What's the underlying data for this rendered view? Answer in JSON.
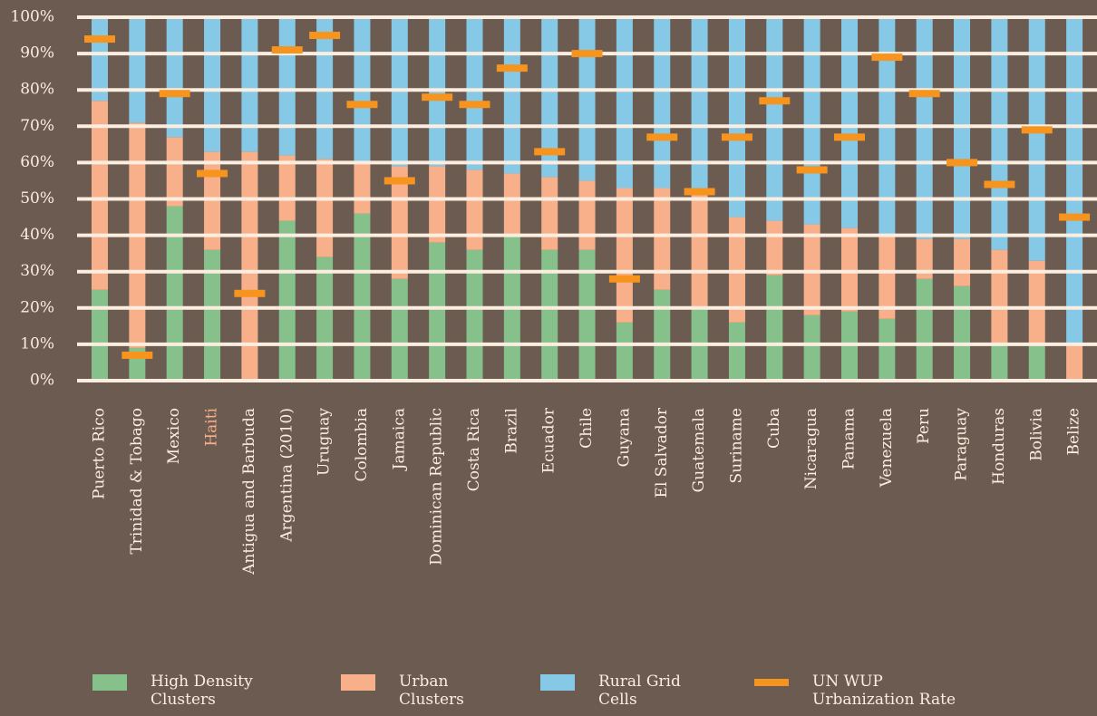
{
  "chart_data": {
    "type": "stacked_bar",
    "categories": [
      "Puerto Rico",
      "Trinidad & Tobago",
      "Mexico",
      "Haiti",
      "Antigua and Barbuda",
      "Argentina (2010)",
      "Uruguay",
      "Colombia",
      "Jamaica",
      "Dominican Republic",
      "Costa Rica",
      "Brazil",
      "Ecuador",
      "Chile",
      "Guyana",
      "El Salvador",
      "Guatemala",
      "Suriname",
      "Cuba",
      "Nicaragua",
      "Panama",
      "Venezuela",
      "Peru",
      "Paraguay",
      "Honduras",
      "Bolivia",
      "Belize"
    ],
    "highlighted_categories": [
      3
    ],
    "highlight_color": "#f7b08a",
    "series": [
      {
        "name": "High Density Clusters",
        "color": "#86c08a",
        "values": [
          25,
          9,
          48,
          36,
          0,
          44,
          34,
          46,
          28,
          38,
          36,
          40,
          36,
          36,
          16,
          25,
          20,
          16,
          29,
          18,
          19,
          17,
          28,
          26,
          10,
          10,
          0
        ]
      },
      {
        "name": "Urban Clusters",
        "color": "#f7b08a",
        "values": [
          52,
          62,
          19,
          27,
          63,
          18,
          27,
          14,
          31,
          21,
          22,
          17,
          20,
          19,
          37,
          28,
          32,
          29,
          15,
          25,
          23,
          23,
          11,
          13,
          26,
          23,
          10
        ]
      },
      {
        "name": "Rural Grid Cells",
        "color": "#86c9e6",
        "values": [
          23,
          29,
          33,
          37,
          37,
          38,
          39,
          40,
          41,
          41,
          42,
          43,
          44,
          45,
          47,
          47,
          48,
          55,
          56,
          57,
          58,
          60,
          61,
          61,
          64,
          67,
          90
        ]
      }
    ],
    "markers": {
      "name": "UN WUP Urbanization Rate",
      "color": "#f7941d",
      "values": [
        94,
        7,
        79,
        57,
        24,
        91,
        95,
        76,
        55,
        78,
        76,
        86,
        63,
        90,
        28,
        67,
        52,
        67,
        77,
        58,
        67,
        89,
        79,
        60,
        54,
        69,
        45
      ]
    },
    "ylim": [
      0,
      100
    ],
    "yticks": [
      {
        "value": 0,
        "label": "0%"
      },
      {
        "value": 10,
        "label": "10%"
      },
      {
        "value": 20,
        "label": "20%"
      },
      {
        "value": 30,
        "label": "30%"
      },
      {
        "value": 40,
        "label": "40%"
      },
      {
        "value": 50,
        "label": "50%"
      },
      {
        "value": 60,
        "label": "60%"
      },
      {
        "value": 70,
        "label": "70%"
      },
      {
        "value": 80,
        "label": "80%"
      },
      {
        "value": 90,
        "label": "90%"
      },
      {
        "value": 100,
        "label": "100%"
      }
    ],
    "grid": true
  }
}
